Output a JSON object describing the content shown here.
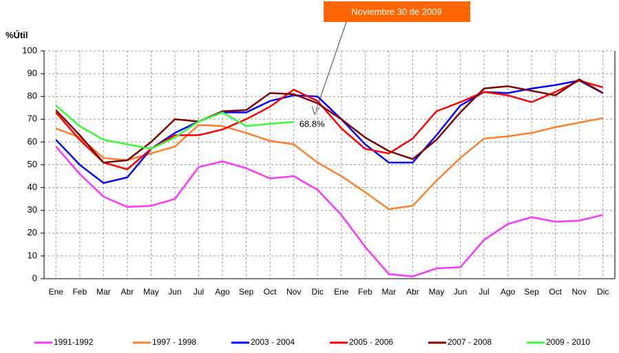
{
  "chart_data": {
    "type": "line",
    "annotation": "Noviembre 30 de 2009",
    "ylabel": "%Útil",
    "categories": [
      "Ene",
      "Feb",
      "Mar",
      "Abr",
      "May",
      "Jun",
      "Jul",
      "Ago",
      "Sep",
      "Oct",
      "Nov",
      "Dic",
      "Ene",
      "Feb",
      "Mar",
      "Abr",
      "May",
      "Jun",
      "Jul",
      "Ago",
      "Sep",
      "Oct",
      "Nov",
      "Dic"
    ],
    "ylim": [
      0,
      100
    ],
    "yticks": [
      0,
      10,
      20,
      30,
      40,
      50,
      60,
      70,
      80,
      90,
      100
    ],
    "grid": true,
    "series": [
      {
        "name": "1991-1992",
        "color": "#ff33ff",
        "values": [
          58,
          46,
          36,
          31.5,
          32,
          35,
          49,
          51.5,
          48.5,
          44,
          45,
          39,
          28,
          14,
          2,
          1,
          4.5,
          5,
          17,
          24,
          27,
          25,
          25.5,
          28
        ]
      },
      {
        "name": "1997 - 1998",
        "color": "#ff7f27",
        "values": [
          66,
          62,
          53,
          52,
          55,
          58,
          67.5,
          67,
          64,
          60.5,
          59,
          51,
          45,
          38,
          30.5,
          32,
          43,
          53,
          61.5,
          62.5,
          64,
          66.5,
          68.5,
          70.5
        ]
      },
      {
        "name": "2003 - 2004",
        "color": "#0000ff",
        "values": [
          61,
          50,
          42,
          44.5,
          57,
          64,
          69,
          73,
          73,
          78,
          80.5,
          80,
          70,
          59,
          51,
          51,
          63,
          76,
          82,
          81.5,
          83.5,
          85,
          87,
          81.5
        ]
      },
      {
        "name": "2005 - 2006",
        "color": "#ff0000",
        "values": [
          73,
          61,
          51,
          48,
          57,
          63,
          63,
          65.5,
          70,
          75.5,
          83,
          78,
          66,
          57,
          55,
          61.5,
          73.5,
          77.5,
          82,
          80.5,
          77.5,
          82,
          87,
          84
        ]
      },
      {
        "name": "2007 - 2008",
        "color": "#800000",
        "values": [
          74,
          63,
          51,
          52,
          60,
          70,
          69,
          73.5,
          74,
          81.5,
          81,
          77,
          70,
          62,
          56,
          52.5,
          61,
          73,
          83.5,
          84.5,
          82.5,
          80.5,
          87.5,
          81.5
        ]
      },
      {
        "name": "2009 - 2010",
        "color": "#33ff33",
        "values": [
          76,
          67,
          61,
          59,
          57,
          62,
          69,
          73,
          67,
          68,
          68.8,
          null,
          null,
          null,
          null,
          null,
          null,
          null,
          null,
          null,
          null,
          null,
          null,
          null
        ],
        "value_labels": [
          null,
          null,
          null,
          null,
          null,
          null,
          null,
          null,
          null,
          null,
          "68.8%",
          null,
          null,
          null,
          null,
          null,
          null,
          null,
          null,
          null,
          null,
          null,
          null,
          null
        ]
      }
    ]
  }
}
